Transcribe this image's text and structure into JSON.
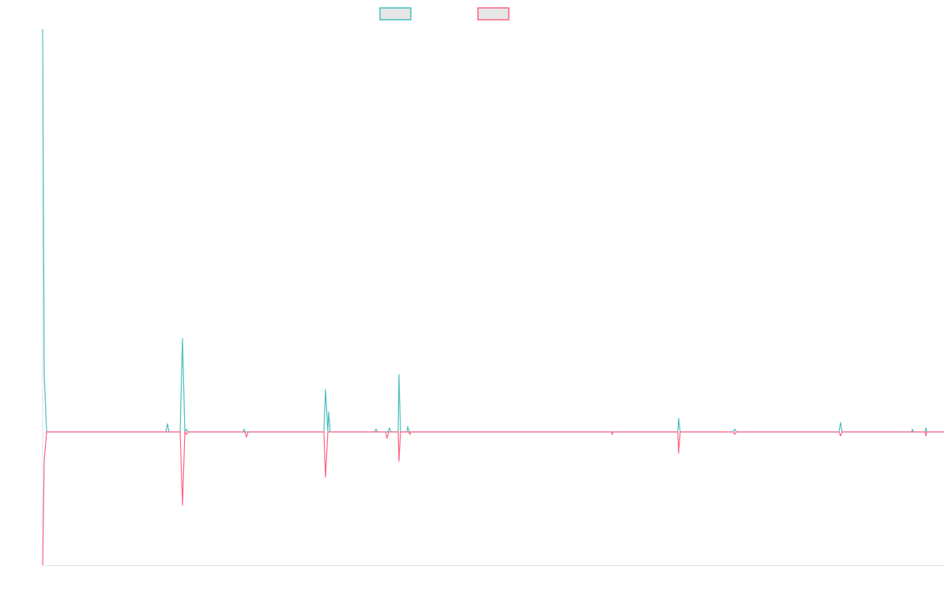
{
  "chart_data": {
    "type": "line",
    "title": "",
    "xlabel": "",
    "ylabel": "",
    "xlim": [
      0,
      570.5
    ],
    "ylim": [
      -1,
      3.02
    ],
    "grid": false,
    "legend": "top",
    "series": [
      {
        "color": "#4bc0c0",
        "points": [
          [
            0,
            3.02
          ],
          [
            1,
            0.43
          ],
          [
            2.5,
            0
          ],
          [
            78,
            0
          ],
          [
            79,
            0.06
          ],
          [
            80,
            0
          ],
          [
            87,
            0
          ],
          [
            88.5,
            0.7
          ],
          [
            90,
            0
          ],
          [
            91,
            0.02
          ],
          [
            92,
            0
          ],
          [
            127,
            0
          ],
          [
            127.5,
            0.02
          ],
          [
            128,
            0
          ],
          [
            178,
            0
          ],
          [
            179,
            0.32
          ],
          [
            180.5,
            0
          ],
          [
            181,
            0.15
          ],
          [
            182,
            0
          ],
          [
            210,
            0
          ],
          [
            211,
            0.02
          ],
          [
            212,
            0
          ],
          [
            218.5,
            0
          ],
          [
            219.5,
            0.03
          ],
          [
            220.5,
            0
          ],
          [
            225,
            0
          ],
          [
            225.5,
            0.43
          ],
          [
            226.5,
            0
          ],
          [
            230.5,
            0
          ],
          [
            231,
            0.04
          ],
          [
            232,
            0
          ],
          [
            402,
            0
          ],
          [
            402.5,
            0.1
          ],
          [
            403.5,
            0
          ],
          [
            437,
            0
          ],
          [
            438,
            0.02
          ],
          [
            439,
            0
          ],
          [
            504,
            0
          ],
          [
            505,
            0.07
          ],
          [
            506,
            0
          ],
          [
            550,
            0
          ],
          [
            550.5,
            0.02
          ],
          [
            551,
            0
          ],
          [
            558.5,
            0
          ],
          [
            559,
            0.03
          ],
          [
            559.5,
            0
          ],
          [
            570.5,
            0
          ]
        ]
      },
      {
        "color": "#ff6384",
        "points": [
          [
            0,
            -1
          ],
          [
            1,
            -0.22
          ],
          [
            2.5,
            0
          ],
          [
            87,
            0
          ],
          [
            88.5,
            -0.55
          ],
          [
            90,
            0
          ],
          [
            91,
            -0.02
          ],
          [
            92,
            0
          ],
          [
            128,
            0
          ],
          [
            129,
            -0.04
          ],
          [
            130,
            0
          ],
          [
            178,
            0
          ],
          [
            179,
            -0.34
          ],
          [
            180.5,
            0
          ],
          [
            217,
            0
          ],
          [
            218,
            -0.05
          ],
          [
            219,
            0
          ],
          [
            225,
            0
          ],
          [
            225.5,
            -0.22
          ],
          [
            226.5,
            0
          ],
          [
            231.5,
            0
          ],
          [
            232.5,
            -0.02
          ],
          [
            233,
            0
          ],
          [
            360,
            0
          ],
          [
            360.5,
            -0.02
          ],
          [
            361,
            0
          ],
          [
            402,
            0
          ],
          [
            402.5,
            -0.16
          ],
          [
            403.5,
            0
          ],
          [
            437,
            0
          ],
          [
            438,
            -0.02
          ],
          [
            439,
            0
          ],
          [
            504,
            0
          ],
          [
            505,
            -0.03
          ],
          [
            506,
            0
          ],
          [
            558.5,
            0
          ],
          [
            559,
            -0.03
          ],
          [
            559.5,
            0
          ],
          [
            570.5,
            0
          ]
        ]
      }
    ]
  }
}
